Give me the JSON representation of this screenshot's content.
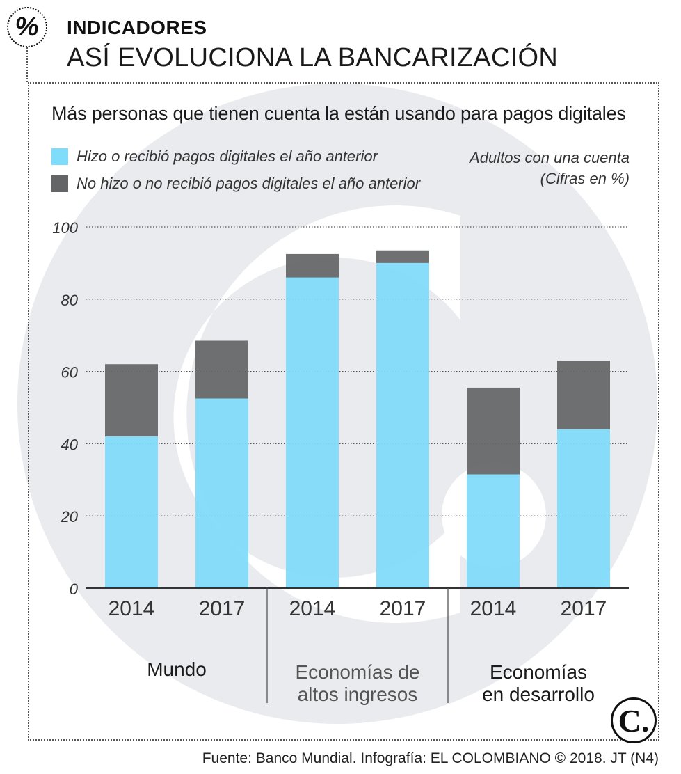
{
  "header": {
    "badge": "%",
    "kicker": "INDICADORES",
    "headline": "ASÍ EVOLUCIONA LA BANCARIZACIÓN"
  },
  "colors": {
    "digital": "#7fdcfa",
    "no_digital": "#646567",
    "watermark": "#e9ebef",
    "grid": "#555555"
  },
  "chart_data": {
    "type": "bar",
    "stacked": true,
    "title": "Más personas que tienen cuenta la están usando para pagos digitales",
    "note": "Adultos con una cuenta (Cifras en %)",
    "ylim": [
      0,
      100
    ],
    "yticks": [
      0,
      20,
      40,
      60,
      80,
      100
    ],
    "groups": [
      {
        "name": "Mundo",
        "lines": [
          "Mundo"
        ],
        "categories": [
          "2014",
          "2017"
        ]
      },
      {
        "name": "Economías de altos ingresos",
        "lines": [
          "Economías de",
          "altos ingresos"
        ],
        "categories": [
          "2014",
          "2017"
        ]
      },
      {
        "name": "Economías en desarrollo",
        "lines": [
          "Economías",
          "en desarrollo"
        ],
        "categories": [
          "2014",
          "2017"
        ]
      }
    ],
    "categories": [
      "2014",
      "2017",
      "2014",
      "2017",
      "2014",
      "2017"
    ],
    "series": [
      {
        "name": "Hizo o recibió pagos digitales el año anterior",
        "values": [
          42,
          52.5,
          86,
          90,
          31.5,
          44
        ]
      },
      {
        "name": "No hizo o no recibió pagos digitales el año anterior",
        "values": [
          20,
          16,
          6.5,
          3.5,
          24,
          19
        ]
      }
    ]
  },
  "footer": {
    "logo": "C.",
    "source": "Fuente: Banco Mundial. Infografía: EL COLOMBIANO © 2018. JT (N4)"
  }
}
